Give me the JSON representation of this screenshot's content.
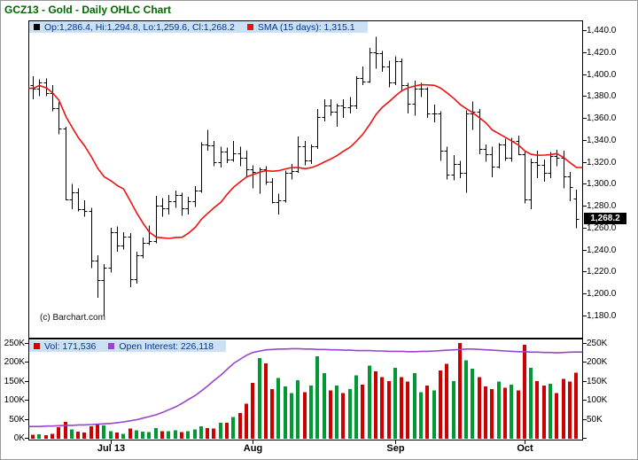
{
  "header": {
    "title": "GCZ13 - Gold - Daily OHLC Chart"
  },
  "price_panel": {
    "legend": {
      "ohlc_text": "Op:1,286.4, Hi:1,294.8, Lo:1,259.6, Cl:1,268.2",
      "sma_text": "SMA (15 days): 1,315.1"
    },
    "y_tick_labels": [
      "1,440.0",
      "1,420.0",
      "1,400.0",
      "1,380.0",
      "1,360.0",
      "1,340.0",
      "1,320.0",
      "1,300.0",
      "1,280.0",
      "1,260.0",
      "1,240.0",
      "1,220.0",
      "1,200.0",
      "1,180.0"
    ],
    "last_price_label": "1,268.2",
    "last_price_value": 1268.2,
    "copyright": "(c) Barchart.com"
  },
  "volume_panel": {
    "legend": {
      "vol_text": "Vol: 171,536",
      "oi_text": "Open Interest: 226,118"
    },
    "left_tick_labels": [
      "250K",
      "200K",
      "150K",
      "100K",
      "50K",
      "0K"
    ],
    "right_tick_labels": [
      "250K",
      "200K",
      "150K",
      "100K",
      "50K"
    ]
  },
  "colors": {
    "title": "#006600",
    "ohlc": "#000000",
    "sma_line": "#ee1111",
    "up_volume": "#009933",
    "down_volume": "#cc0000",
    "open_interest_line": "#9944cc",
    "legend_bg": "#cce0f4",
    "legend_text": "#003399",
    "last_price_bg": "#000000",
    "last_price_text": "#ffffff"
  },
  "chart_data": {
    "type": "ohlc",
    "title": "GCZ13 - Gold - Daily OHLC Chart",
    "price_axis": {
      "min": 1180,
      "max": 1440,
      "tick_step": 20
    },
    "volume_axis": {
      "min": 0,
      "max": 250000
    },
    "sma_period": 15,
    "x_month_starts": [
      {
        "label": "Jul 13",
        "bar_index": 12
      },
      {
        "label": "Aug",
        "bar_index": 34
      },
      {
        "label": "Sep",
        "bar_index": 56
      },
      {
        "label": "Oct",
        "bar_index": 76
      }
    ],
    "bar_format": [
      "open",
      "high",
      "low",
      "close",
      "volume_thousands",
      "open_interest_thousands"
    ],
    "bars": [
      [
        1390,
        1398,
        1377,
        1387,
        8,
        30
      ],
      [
        1387,
        1395,
        1380,
        1392,
        9,
        30
      ],
      [
        1392,
        1396,
        1380,
        1383,
        7,
        31
      ],
      [
        1383,
        1390,
        1366,
        1369,
        11,
        31
      ],
      [
        1369,
        1374,
        1345,
        1350,
        28,
        32
      ],
      [
        1350,
        1352,
        1285,
        1286,
        42,
        33
      ],
      [
        1286,
        1300,
        1277,
        1292,
        22,
        33
      ],
      [
        1292,
        1296,
        1275,
        1277,
        16,
        34
      ],
      [
        1277,
        1285,
        1270,
        1275,
        14,
        34
      ],
      [
        1275,
        1278,
        1223,
        1230,
        30,
        35
      ],
      [
        1230,
        1235,
        1196,
        1212,
        36,
        36
      ],
      [
        1212,
        1227,
        1179,
        1224,
        33,
        37
      ],
      [
        1224,
        1260,
        1219,
        1256,
        18,
        38
      ],
      [
        1256,
        1261,
        1238,
        1244,
        14,
        40
      ],
      [
        1244,
        1256,
        1240,
        1252,
        11,
        42
      ],
      [
        1252,
        1255,
        1206,
        1213,
        24,
        45
      ],
      [
        1213,
        1238,
        1209,
        1235,
        20,
        48
      ],
      [
        1235,
        1251,
        1232,
        1246,
        16,
        52
      ],
      [
        1246,
        1262,
        1244,
        1248,
        15,
        56
      ],
      [
        1248,
        1289,
        1246,
        1280,
        26,
        61
      ],
      [
        1280,
        1287,
        1270,
        1278,
        18,
        67
      ],
      [
        1278,
        1290,
        1272,
        1284,
        17,
        74
      ],
      [
        1284,
        1294,
        1278,
        1290,
        20,
        82
      ],
      [
        1290,
        1292,
        1271,
        1278,
        15,
        91
      ],
      [
        1278,
        1288,
        1272,
        1284,
        17,
        101
      ],
      [
        1284,
        1298,
        1279,
        1294,
        22,
        112
      ],
      [
        1294,
        1338,
        1292,
        1336,
        30,
        124
      ],
      [
        1336,
        1349,
        1330,
        1335,
        26,
        137
      ],
      [
        1335,
        1339,
        1316,
        1320,
        24,
        151
      ],
      [
        1320,
        1334,
        1315,
        1329,
        40,
        166
      ],
      [
        1329,
        1333,
        1319,
        1322,
        40,
        181
      ],
      [
        1322,
        1339,
        1320,
        1328,
        55,
        196
      ],
      [
        1328,
        1334,
        1316,
        1324,
        65,
        208
      ],
      [
        1324,
        1330,
        1306,
        1313,
        90,
        218
      ],
      [
        1313,
        1317,
        1296,
        1311,
        145,
        225
      ],
      [
        1311,
        1315,
        1291,
        1313,
        210,
        229
      ],
      [
        1313,
        1316,
        1299,
        1302,
        196,
        232
      ],
      [
        1302,
        1305,
        1282,
        1283,
        128,
        233
      ],
      [
        1283,
        1291,
        1272,
        1285,
        158,
        234
      ],
      [
        1285,
        1312,
        1283,
        1310,
        135,
        234
      ],
      [
        1310,
        1318,
        1304,
        1312,
        118,
        235
      ],
      [
        1312,
        1343,
        1310,
        1334,
        152,
        235
      ],
      [
        1334,
        1339,
        1317,
        1321,
        120,
        234
      ],
      [
        1321,
        1336,
        1318,
        1334,
        138,
        234
      ],
      [
        1334,
        1368,
        1332,
        1361,
        215,
        233
      ],
      [
        1361,
        1377,
        1357,
        1371,
        170,
        233
      ],
      [
        1371,
        1377,
        1362,
        1366,
        125,
        232
      ],
      [
        1366,
        1373,
        1352,
        1371,
        138,
        232
      ],
      [
        1371,
        1377,
        1360,
        1370,
        118,
        231
      ],
      [
        1370,
        1379,
        1364,
        1371,
        128,
        231
      ],
      [
        1371,
        1398,
        1368,
        1396,
        165,
        230
      ],
      [
        1396,
        1407,
        1390,
        1393,
        140,
        230
      ],
      [
        1393,
        1424,
        1392,
        1420,
        190,
        230
      ],
      [
        1420,
        1434,
        1405,
        1419,
        175,
        229
      ],
      [
        1419,
        1421,
        1402,
        1407,
        160,
        229
      ],
      [
        1407,
        1412,
        1388,
        1392,
        150,
        228
      ],
      [
        1392,
        1416,
        1390,
        1412,
        185,
        228
      ],
      [
        1412,
        1414,
        1384,
        1390,
        160,
        228
      ],
      [
        1390,
        1392,
        1364,
        1373,
        148,
        227
      ],
      [
        1373,
        1394,
        1362,
        1387,
        170,
        227
      ],
      [
        1387,
        1392,
        1379,
        1387,
        120,
        228
      ],
      [
        1387,
        1388,
        1360,
        1364,
        138,
        228
      ],
      [
        1364,
        1372,
        1356,
        1364,
        125,
        229
      ],
      [
        1364,
        1366,
        1321,
        1330,
        178,
        230
      ],
      [
        1330,
        1334,
        1304,
        1308,
        195,
        231
      ],
      [
        1308,
        1326,
        1303,
        1318,
        150,
        232
      ],
      [
        1318,
        1321,
        1305,
        1310,
        250,
        233
      ],
      [
        1310,
        1367,
        1292,
        1364,
        205,
        234
      ],
      [
        1364,
        1375,
        1349,
        1366,
        182,
        234
      ],
      [
        1366,
        1368,
        1327,
        1332,
        160,
        233
      ],
      [
        1332,
        1336,
        1320,
        1327,
        135,
        232
      ],
      [
        1327,
        1334,
        1306,
        1316,
        128,
        231
      ],
      [
        1316,
        1337,
        1314,
        1336,
        148,
        230
      ],
      [
        1336,
        1341,
        1321,
        1324,
        132,
        229
      ],
      [
        1324,
        1342,
        1320,
        1339,
        140,
        228
      ],
      [
        1339,
        1344,
        1326,
        1327,
        125,
        227
      ],
      [
        1327,
        1329,
        1282,
        1286,
        245,
        227
      ],
      [
        1286,
        1323,
        1277,
        1320,
        185,
        226
      ],
      [
        1320,
        1330,
        1305,
        1317,
        150,
        226
      ],
      [
        1317,
        1322,
        1302,
        1310,
        138,
        225
      ],
      [
        1310,
        1329,
        1305,
        1325,
        142,
        225
      ],
      [
        1325,
        1331,
        1316,
        1324,
        118,
        224
      ],
      [
        1324,
        1330,
        1296,
        1307,
        155,
        225
      ],
      [
        1307,
        1311,
        1284,
        1297,
        148,
        226
      ],
      [
        1286.4,
        1294.8,
        1259.6,
        1268.2,
        171.5,
        226.118
      ]
    ]
  }
}
